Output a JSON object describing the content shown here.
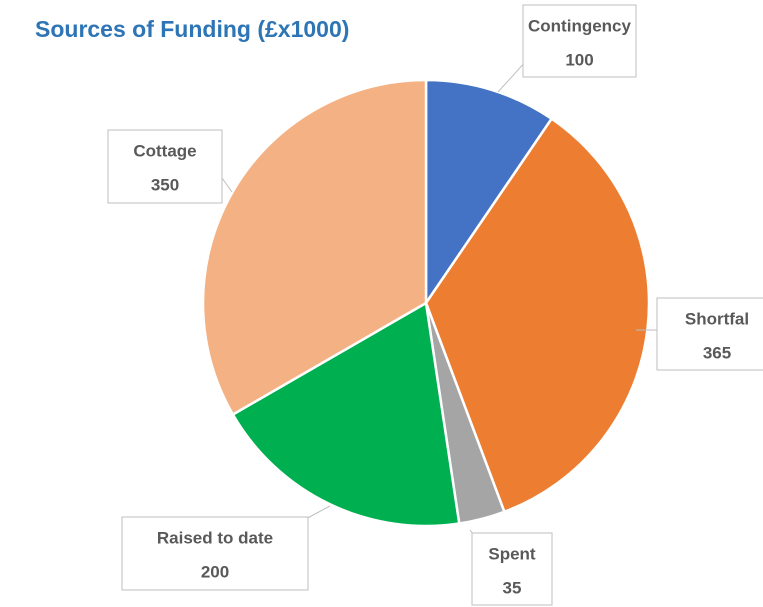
{
  "chart_data": {
    "type": "pie",
    "title": "Sources of Funding (£x1000)",
    "categories": [
      "Contingency",
      "Shortfal",
      "Spent",
      "Raised to date",
      "Cottage"
    ],
    "values": [
      100,
      365,
      35,
      200,
      350
    ],
    "colors": [
      "#4472c4",
      "#ed7d31",
      "#a5a5a5",
      "#00b050",
      "#f4b183"
    ]
  }
}
